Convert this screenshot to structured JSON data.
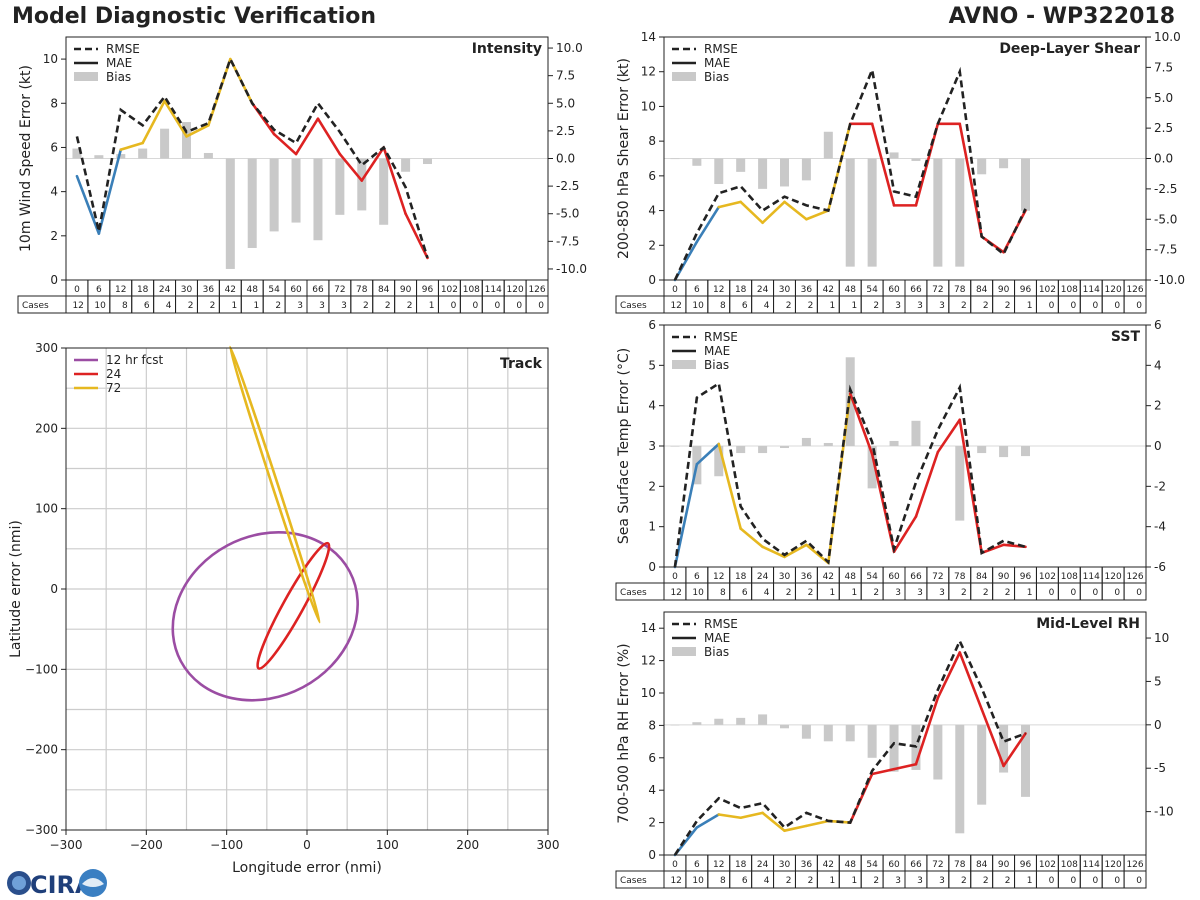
{
  "header": {
    "title": "Model Diagnostic Verification",
    "storm": "AVNO - WP322018"
  },
  "logo": {
    "text": "CIRA"
  },
  "colors": {
    "rmse": "#222222",
    "early": "#3a7fb8",
    "mid": "#e6b820",
    "late": "#dd2222",
    "bias": "#c9c9c9",
    "track12": "#9b4da3",
    "track24": "#dd2222",
    "track72": "#e6b820",
    "grid": "#cccccc"
  },
  "legend": {
    "rmse": "RMSE",
    "mae": "MAE",
    "bias": "Bias"
  },
  "hours": [
    "0",
    "6",
    "12",
    "18",
    "24",
    "30",
    "36",
    "42",
    "48",
    "54",
    "60",
    "66",
    "72",
    "78",
    "84",
    "90",
    "96",
    "102",
    "108",
    "114",
    "120",
    "126"
  ],
  "cases_label": "Cases",
  "cases": [
    "12",
    "10",
    "8",
    "6",
    "4",
    "2",
    "2",
    "1",
    "1",
    "2",
    "3",
    "3",
    "3",
    "2",
    "2",
    "2",
    "1",
    "0",
    "0",
    "0",
    "0",
    "0"
  ],
  "chart_data": [
    {
      "id": "intensity",
      "type": "line",
      "title": "Intensity",
      "ylabel": "10m Wind Speed Error (kt)",
      "ylim": [
        0,
        11
      ],
      "yticks": [
        0,
        2,
        4,
        6,
        8,
        10
      ],
      "y2lim": [
        -11,
        11
      ],
      "y2ticks": [
        -10.0,
        -7.5,
        -5.0,
        -2.5,
        0.0,
        2.5,
        5.0,
        7.5,
        10.0
      ],
      "rmse": [
        6.5,
        2.2,
        7.7,
        7.0,
        8.3,
        6.7,
        7.1,
        10.0,
        8.0,
        6.8,
        6.2,
        8.0,
        6.7,
        5.2,
        6.0,
        4.2,
        1.0
      ],
      "mae": [
        4.7,
        2.1,
        5.9,
        6.2,
        8.1,
        6.5,
        7.0,
        10.0,
        8.0,
        6.6,
        5.7,
        7.3,
        5.7,
        4.5,
        6.0,
        3.0,
        1.0
      ],
      "bias": [
        0.9,
        0.3,
        0.4,
        0.9,
        2.7,
        3.3,
        0.5,
        -10.0,
        -8.1,
        -6.6,
        -5.8,
        -7.4,
        -5.1,
        -4.7,
        -6.0,
        -1.2,
        -0.5
      ]
    },
    {
      "id": "shear",
      "type": "line",
      "title": "Deep-Layer Shear",
      "ylabel": "200-850 hPa Shear Error (kt)",
      "ylim": [
        0,
        14
      ],
      "yticks": [
        0,
        2,
        4,
        6,
        8,
        10,
        12,
        14
      ],
      "y2lim": [
        -10,
        10
      ],
      "y2ticks": [
        -10.0,
        -7.5,
        -5.0,
        -2.5,
        0.0,
        2.5,
        5.0,
        7.5,
        10.0
      ],
      "rmse": [
        0.0,
        2.7,
        5.0,
        5.4,
        4.0,
        4.8,
        4.3,
        4.0,
        9.0,
        12.1,
        5.1,
        4.8,
        9.0,
        12.0,
        2.5,
        1.5,
        4.1
      ],
      "mae": [
        0.0,
        2.2,
        4.2,
        4.5,
        3.3,
        4.5,
        3.5,
        4.0,
        9.0,
        9.0,
        4.3,
        4.3,
        9.0,
        9.0,
        2.5,
        1.6,
        4.0
      ],
      "bias": [
        0.0,
        -0.6,
        -2.1,
        -1.1,
        -2.5,
        -2.3,
        -1.8,
        2.2,
        -8.9,
        -8.9,
        0.5,
        -0.2,
        -8.9,
        -8.9,
        -1.3,
        -0.8,
        -4.3
      ]
    },
    {
      "id": "sst",
      "type": "line",
      "title": "SST",
      "ylabel": "Sea Surface Temp Error (°C)",
      "ylim": [
        0,
        6
      ],
      "yticks": [
        0,
        1,
        2,
        3,
        4,
        5,
        6
      ],
      "y2lim": [
        -6,
        6
      ],
      "y2ticks": [
        -6,
        -4,
        -2,
        0,
        2,
        4,
        6
      ],
      "rmse": [
        0.0,
        4.2,
        4.55,
        1.5,
        0.7,
        0.3,
        0.65,
        0.12,
        4.4,
        3.1,
        0.45,
        2.1,
        3.4,
        4.45,
        0.35,
        0.65,
        0.5
      ],
      "mae": [
        0.0,
        2.55,
        3.05,
        0.95,
        0.5,
        0.25,
        0.55,
        0.1,
        4.3,
        2.8,
        0.38,
        1.25,
        2.85,
        3.65,
        0.35,
        0.55,
        0.5
      ],
      "bias": [
        0.0,
        -1.9,
        -1.5,
        -0.35,
        -0.35,
        -0.1,
        0.4,
        0.15,
        4.4,
        -2.1,
        0.25,
        1.25,
        0.05,
        -3.7,
        -0.35,
        -0.55,
        -0.5
      ]
    },
    {
      "id": "rh",
      "type": "line",
      "title": "Mid-Level RH",
      "ylabel": "700-500 hPa RH Error (%)",
      "ylim": [
        0,
        15
      ],
      "yticks": [
        0,
        2,
        4,
        6,
        8,
        10,
        12,
        14
      ],
      "y2lim": [
        -15,
        13
      ],
      "y2ticks": [
        -10,
        -5,
        0,
        5,
        10
      ],
      "rmse": [
        0.0,
        2.1,
        3.5,
        2.9,
        3.2,
        1.7,
        2.6,
        2.1,
        2.0,
        5.2,
        6.9,
        6.7,
        10.2,
        13.2,
        10.3,
        7.0,
        7.5
      ],
      "mae": [
        0.0,
        1.7,
        2.5,
        2.3,
        2.6,
        1.5,
        1.8,
        2.1,
        2.0,
        5.0,
        5.3,
        5.6,
        9.7,
        12.5,
        9.0,
        5.5,
        7.5
      ],
      "bias": [
        0.0,
        0.3,
        0.7,
        0.8,
        1.2,
        -0.4,
        -1.6,
        -1.9,
        -1.9,
        -3.8,
        -5.4,
        -5.2,
        -6.3,
        -12.5,
        -9.2,
        -5.5,
        -8.3
      ]
    },
    {
      "id": "track",
      "type": "ellipse",
      "title": "Track",
      "xlabel": "Longitude error (nmi)",
      "ylabel": "Latitude error (nmi)",
      "xlim": [
        -300,
        300
      ],
      "ylim": [
        -300,
        300
      ],
      "ticks": [
        -300,
        -200,
        -100,
        0,
        100,
        200,
        300
      ],
      "legend": [
        "12 hr fcst",
        "24",
        "72"
      ],
      "ellipses": [
        {
          "cx": -52,
          "cy": -34,
          "rx": 119,
          "ry": 100,
          "angle": -28
        },
        {
          "cx": -17,
          "cy": -21,
          "rx": 89,
          "ry": 12.5,
          "angle": -61
        },
        {
          "cx": -40,
          "cy": 130,
          "rx": 180,
          "ry": 3.5,
          "angle": 72
        }
      ]
    }
  ]
}
